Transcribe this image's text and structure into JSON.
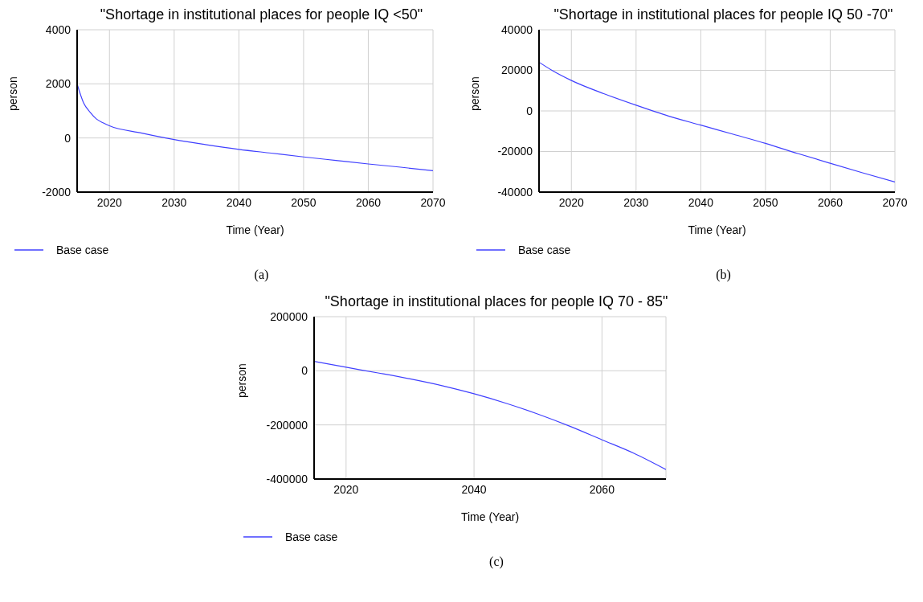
{
  "chart_data": [
    {
      "type": "line",
      "title": "\"Shortage in institutional places for people IQ <50\"",
      "xlabel": "Time (Year)",
      "ylabel": "person",
      "x": [
        2015,
        2016,
        2017,
        2018,
        2019,
        2020,
        2025,
        2030,
        2035,
        2040,
        2045,
        2050,
        2055,
        2060,
        2065,
        2070
      ],
      "series": [
        {
          "name": "Base case",
          "color": "#4040ff",
          "values": [
            2000,
            1300,
            950,
            700,
            560,
            450,
            180,
            -60,
            -250,
            -420,
            -560,
            -700,
            -830,
            -960,
            -1080,
            -1210
          ]
        }
      ],
      "xlim": [
        2015,
        2070
      ],
      "xticks": [
        2020,
        2030,
        2040,
        2050,
        2060,
        2070
      ],
      "ylim": [
        -2000,
        4000
      ],
      "yticks": [
        -2000,
        0,
        2000,
        4000
      ],
      "grid": true,
      "legend": "bottom left",
      "annotations": [
        "(a)"
      ]
    },
    {
      "type": "line",
      "title": "\"Shortage in institutional places for people IQ 50 -70\"",
      "xlabel": "Time (Year)",
      "ylabel": "person",
      "x": [
        2015,
        2017,
        2020,
        2025,
        2030,
        2035,
        2040,
        2045,
        2050,
        2055,
        2060,
        2065,
        2070
      ],
      "series": [
        {
          "name": "Base case",
          "color": "#4040ff",
          "values": [
            24000,
            20000,
            15000,
            8500,
            2800,
            -2500,
            -7000,
            -11500,
            -16000,
            -21000,
            -25800,
            -30500,
            -35000
          ]
        }
      ],
      "xlim": [
        2015,
        2070
      ],
      "xticks": [
        2020,
        2030,
        2040,
        2050,
        2060,
        2070
      ],
      "ylim": [
        -40000,
        40000
      ],
      "yticks": [
        -40000,
        -20000,
        0,
        20000,
        40000
      ],
      "grid": true,
      "legend": "bottom left",
      "annotations": [
        "(b)"
      ]
    },
    {
      "type": "line",
      "title": "\"Shortage in institutional places for people IQ 70 - 85\"",
      "xlabel": "Time (Year)",
      "ylabel": "person",
      "x": [
        2015,
        2020,
        2025,
        2030,
        2035,
        2040,
        2045,
        2050,
        2055,
        2060,
        2065,
        2070
      ],
      "series": [
        {
          "name": "Base case",
          "color": "#4040ff",
          "values": [
            35000,
            13000,
            -8000,
            -30000,
            -55000,
            -85000,
            -120000,
            -160000,
            -205000,
            -255000,
            -305000,
            -365000
          ]
        }
      ],
      "xlim": [
        2015,
        2070
      ],
      "xticks": [
        2020,
        2040,
        2060
      ],
      "ylim": [
        -400000,
        200000
      ],
      "yticks": [
        -400000,
        -200000,
        0,
        200000
      ],
      "grid": true,
      "legend": "bottom left",
      "annotations": [
        "(c)"
      ]
    }
  ]
}
